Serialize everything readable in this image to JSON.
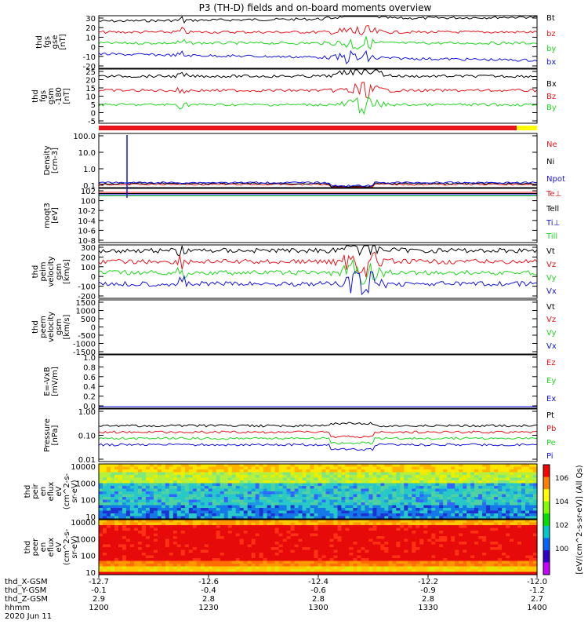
{
  "title": "P3 (TH-D) fields and on-board moments overview",
  "colors": {
    "black": "#000000",
    "red": "#e8141c",
    "green": "#1fd81f",
    "blue": "#1414e0",
    "yellow": "#ffff00"
  },
  "chart_data": [
    {
      "panel": "fgs_gse",
      "type": "line",
      "ylabel": [
        "thd",
        "fgs",
        "gse",
        "[nT]"
      ],
      "yticks": [
        30,
        20,
        10,
        0,
        -10,
        -20
      ],
      "ylim": [
        -20,
        30
      ],
      "series": [
        {
          "name": "Bt",
          "color": "black",
          "base": 17,
          "noise": 2
        },
        {
          "name": "bz",
          "color": "red",
          "base": 12,
          "noise": 2
        },
        {
          "name": "by",
          "color": "green",
          "base": 1,
          "noise": 2
        },
        {
          "name": "bx",
          "color": "blue",
          "base": -12,
          "noise": 2
        }
      ]
    },
    {
      "panel": "fgs_gsm",
      "type": "line",
      "ylabel": [
        "thd",
        "fgs",
        "gsm",
        "-180",
        "[nT]"
      ],
      "yticks": [
        25,
        20,
        15,
        10,
        5,
        0,
        -5
      ],
      "ylim": [
        -7,
        25
      ],
      "series": [
        {
          "name": "Bx",
          "color": "black",
          "base": 10,
          "noise": 2
        },
        {
          "name": "Bz",
          "color": "red",
          "base": 6,
          "noise": 2
        },
        {
          "name": "By",
          "color": "green",
          "base": 0,
          "noise": 2
        }
      ]
    },
    {
      "panel": "density",
      "type": "line",
      "ylabel": [
        "Density",
        "[cm-3]"
      ],
      "yticks": [
        "100.0",
        "10.0",
        "1.0",
        "0.1"
      ],
      "log": true,
      "ylim": [
        0.1,
        100
      ],
      "series": [
        {
          "name": "Ne",
          "color": "red",
          "base": 0.15
        },
        {
          "name": "Ni",
          "color": "black",
          "base": 0.14
        },
        {
          "name": "Npot",
          "color": "blue",
          "base": 0.13
        }
      ]
    },
    {
      "panel": "temperature",
      "type": "line",
      "ylabel": [
        "moqt3",
        "[eV]"
      ],
      "yticks": [
        "10^2",
        "10^0",
        "10^-2",
        "10^-4",
        "10^-6",
        "10^-8"
      ],
      "log": true,
      "series": [
        {
          "name": "Te⊥",
          "color": "red"
        },
        {
          "name": "Tell",
          "color": "black"
        },
        {
          "name": "Ti⊥",
          "color": "blue"
        },
        {
          "name": "Till",
          "color": "green"
        }
      ]
    },
    {
      "panel": "peim_velocity",
      "type": "line",
      "ylabel": [
        "thd",
        "peim",
        "velocity",
        "gsm",
        "[km/s]"
      ],
      "yticks": [
        300,
        200,
        100,
        0,
        -100,
        -200
      ],
      "ylim": [
        -200,
        300
      ],
      "series": [
        {
          "name": "Vt",
          "color": "black"
        },
        {
          "name": "Vz",
          "color": "red"
        },
        {
          "name": "Vy",
          "color": "green"
        },
        {
          "name": "Vx",
          "color": "blue"
        }
      ]
    },
    {
      "panel": "peem_velocity",
      "type": "line",
      "ylabel": [
        "thd",
        "peem",
        "velocity",
        "gsm",
        "[km/s]"
      ],
      "yticks": [
        1500,
        1000,
        500,
        0,
        -500,
        -1000,
        -1500
      ],
      "ylim": [
        -1500,
        1500
      ],
      "series": [
        {
          "name": "Vt",
          "color": "black"
        },
        {
          "name": "Vz",
          "color": "red"
        },
        {
          "name": "Vy",
          "color": "green"
        },
        {
          "name": "Vx",
          "color": "blue"
        }
      ]
    },
    {
      "panel": "efield",
      "type": "line",
      "ylabel": [
        "E=-VxB",
        "[mV/m]"
      ],
      "yticks": [
        "1.0",
        "0.8",
        "0.6",
        "0.4",
        "0.2",
        "0.0"
      ],
      "ylim": [
        0,
        1
      ],
      "series": [
        {
          "name": "Ez",
          "color": "red"
        },
        {
          "name": "Ey",
          "color": "green"
        },
        {
          "name": "Ex",
          "color": "blue"
        }
      ]
    },
    {
      "panel": "pressure",
      "type": "line",
      "ylabel": [
        "Pressure",
        "[nPa]"
      ],
      "yticks": [
        "1.00",
        "0.10",
        "0.01"
      ],
      "log": true,
      "series": [
        {
          "name": "Pt",
          "color": "black",
          "base": 0.24
        },
        {
          "name": "Pb",
          "color": "red",
          "base": 0.13
        },
        {
          "name": "Pe",
          "color": "green",
          "base": 0.06
        },
        {
          "name": "Pi",
          "color": "blue",
          "base": 0.07
        }
      ]
    },
    {
      "panel": "peir_spec",
      "type": "heatmap",
      "ylabel": [
        "thd",
        "peir",
        "en",
        "eflux",
        "eV",
        "(cm^2-s-",
        "sr-eV)"
      ],
      "yticks": [
        10000,
        1000,
        100,
        10
      ]
    },
    {
      "panel": "peer_spec",
      "type": "heatmap",
      "ylabel": [
        "thd",
        "peer",
        "en",
        "eflux",
        "eV",
        "(cm^2-s-",
        "sr-eV)"
      ],
      "yticks": [
        10000,
        1000,
        100,
        10
      ]
    }
  ],
  "colorbar": {
    "label": "[eV/(cm^2-s-sr-eV)] (All Qs)",
    "ticks": [
      "10^6",
      "10^4",
      "10^2",
      "10^0"
    ]
  },
  "xaxis": {
    "rows": [
      {
        "name": "thd_X-GSM",
        "values": [
          "-12.7",
          "-12.6",
          "-12.4",
          "-12.2",
          "-12.0"
        ]
      },
      {
        "name": "thd_Y-GSM",
        "values": [
          "-0.1",
          "-0.4",
          "-0.6",
          "-0.9",
          "-1.2"
        ]
      },
      {
        "name": "thd_Z-GSM",
        "values": [
          "2.9",
          "2.8",
          "2.8",
          "2.8",
          "2.7"
        ]
      },
      {
        "name": "hhmm",
        "values": [
          "1200",
          "1230",
          "1300",
          "1330",
          "1400"
        ]
      }
    ],
    "date": "2020 Jun 11"
  }
}
